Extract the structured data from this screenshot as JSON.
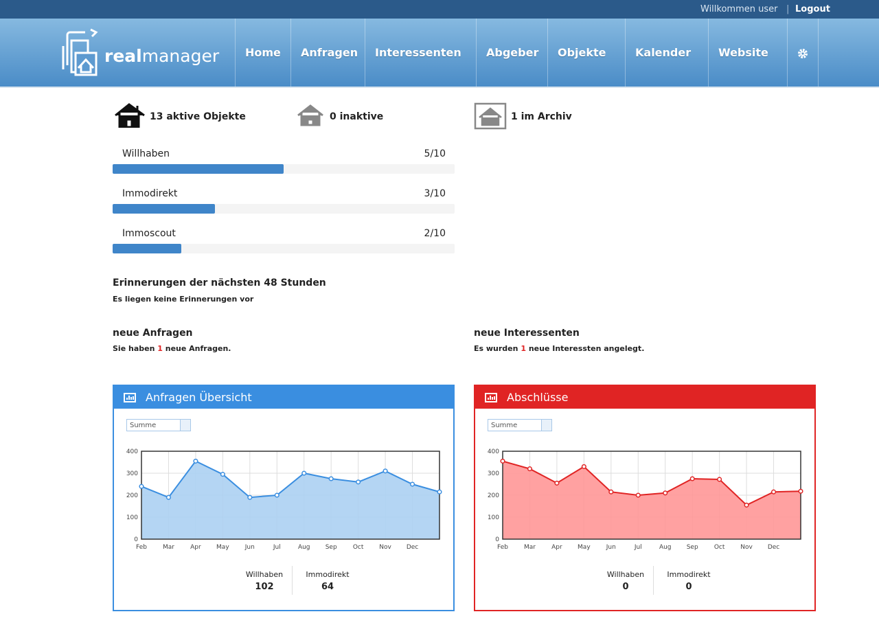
{
  "topbar": {
    "welcome": "Willkommen user",
    "logout": "Logout"
  },
  "logo": {
    "bold": "real",
    "light": "manager"
  },
  "nav": [
    "Home",
    "Anfragen",
    "Interessenten",
    "Abgeber",
    "Objekte",
    "Kalender",
    "Website"
  ],
  "summary": [
    "13 aktive Objekte",
    "0 inaktive",
    "1 im Archiv"
  ],
  "portals": [
    {
      "name": "Willhaben",
      "label": "5/10",
      "value": 5,
      "max": 10
    },
    {
      "name": "Immodirekt",
      "label": "3/10",
      "value": 3,
      "max": 10
    },
    {
      "name": "Immoscout",
      "label": "2/10",
      "value": 2,
      "max": 10
    }
  ],
  "reminders": {
    "title": "Erinnerungen der nächsten 48 Stunden",
    "text": "Es liegen keine Erinnerungen vor"
  },
  "new_requests": {
    "title": "neue Anfragen",
    "before": "Sie haben",
    "count": "1",
    "after": "neue Anfragen."
  },
  "new_prospects": {
    "title": "neue Interessenten",
    "before": "Es wurden",
    "count": "1",
    "after": "neue Interessten angelegt."
  },
  "chart_data": [
    {
      "type": "line",
      "title": "Anfragen Übersicht",
      "select": "Summe",
      "color": "#3a8ee0",
      "fill": "#acd0f2",
      "grid": true,
      "categories": [
        "Feb",
        "Mar",
        "Apr",
        "May",
        "Jun",
        "Jul",
        "Aug",
        "Sep",
        "Oct",
        "Nov",
        "Dec",
        null
      ],
      "values": [
        240,
        190,
        355,
        295,
        190,
        200,
        300,
        275,
        260,
        310,
        250,
        215
      ],
      "ylim": [
        0,
        400
      ],
      "yticks": [
        0,
        100,
        200,
        300,
        400
      ],
      "stats": [
        {
          "label": "Willhaben",
          "value": 102
        },
        {
          "label": "Immodirekt",
          "value": 64
        }
      ]
    },
    {
      "type": "line",
      "title": "Abschlüsse",
      "select": "Summe",
      "color": "#e02424",
      "fill": "#ff9797",
      "grid": true,
      "categories": [
        "Feb",
        "Mar",
        "Apr",
        "May",
        "Jun",
        "Jul",
        "Aug",
        "Sep",
        "Oct",
        "Nov",
        "Dec",
        null
      ],
      "values": [
        355,
        320,
        255,
        330,
        215,
        200,
        210,
        275,
        272,
        155,
        215,
        218
      ],
      "ylim": [
        0,
        400
      ],
      "yticks": [
        0,
        100,
        200,
        300,
        400
      ],
      "stats": [
        {
          "label": "Willhaben",
          "value": 0
        },
        {
          "label": "Immodirekt",
          "value": 0
        }
      ]
    }
  ]
}
